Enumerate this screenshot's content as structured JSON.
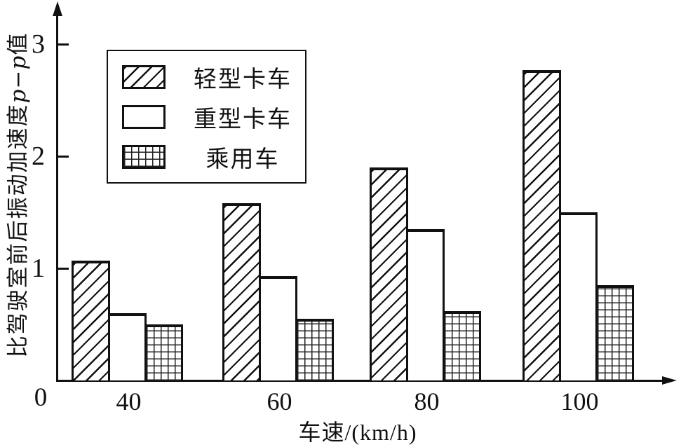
{
  "figure": {
    "background": "#ffffff",
    "line_color": "#111111"
  },
  "chart_data": {
    "type": "bar",
    "title": "",
    "categories": [
      "40",
      "60",
      "80",
      "100"
    ],
    "series": [
      {
        "name": "轻型卡车",
        "pattern": "diagonal-hatch",
        "values": [
          1.07,
          1.58,
          1.9,
          2.77
        ]
      },
      {
        "name": "重型卡车",
        "pattern": "plain-white",
        "values": [
          0.6,
          0.93,
          1.35,
          1.5
        ]
      },
      {
        "name": "乘用车",
        "pattern": "grid-crosshatch",
        "values": [
          0.5,
          0.55,
          0.62,
          0.85
        ]
      }
    ],
    "xlabel": "车速/(km/h)",
    "ylabel": "比驾驶室前后振动加速度p−p值",
    "ylabel_parts": {
      "prefix": "比驾驶室前后振动加速度",
      "italic": "p−p",
      "suffix": "值"
    },
    "yticks": [
      1,
      2,
      3
    ],
    "origin_label": "0",
    "ylim": [
      0,
      3.35
    ],
    "grid": false,
    "legend_position": "upper-left-inside"
  }
}
